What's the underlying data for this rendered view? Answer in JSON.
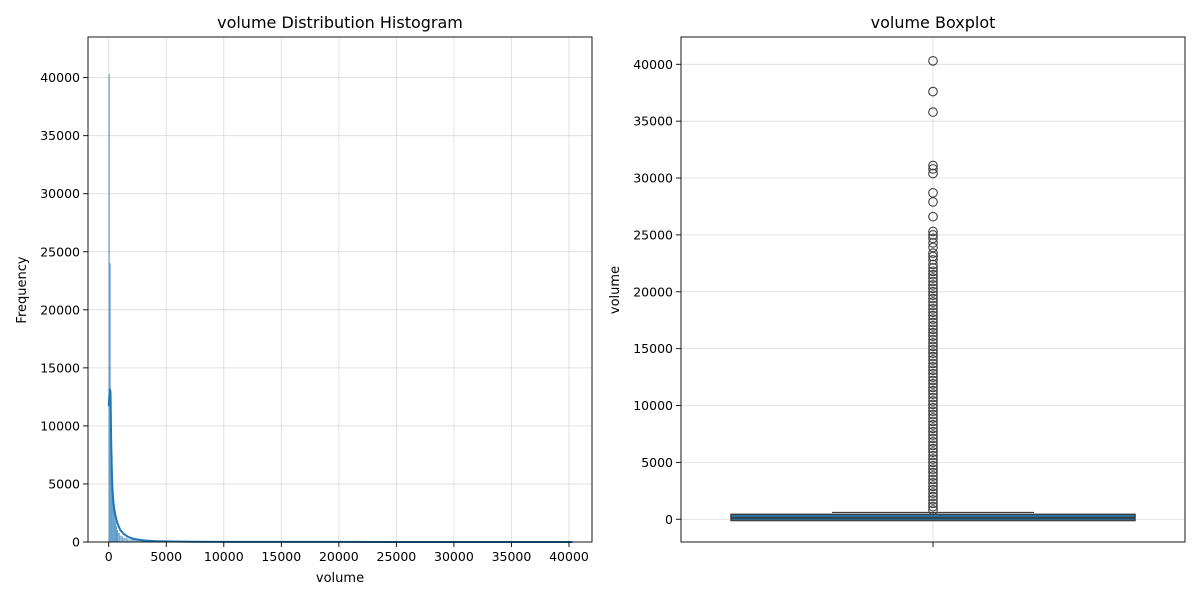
{
  "chart_data": [
    {
      "type": "histogram",
      "title": "volume Distribution Histogram",
      "xlabel": "volume",
      "ylabel": "Frequency",
      "xlim": [
        -1800,
        42000
      ],
      "ylim": [
        0,
        43500
      ],
      "xticks": [
        0,
        5000,
        10000,
        15000,
        20000,
        25000,
        30000,
        35000,
        40000
      ],
      "yticks": [
        0,
        5000,
        10000,
        15000,
        20000,
        25000,
        30000,
        35000,
        40000
      ],
      "grid": true,
      "bar_color": "#1f77b4",
      "bars": [
        {
          "x": 0,
          "width": 80,
          "count": 40300
        },
        {
          "x": 80,
          "width": 80,
          "count": 24000
        },
        {
          "x": 160,
          "width": 80,
          "count": 13000
        },
        {
          "x": 240,
          "width": 80,
          "count": 7500
        },
        {
          "x": 320,
          "width": 80,
          "count": 4800
        },
        {
          "x": 400,
          "width": 80,
          "count": 3300
        },
        {
          "x": 480,
          "width": 80,
          "count": 2400
        },
        {
          "x": 560,
          "width": 80,
          "count": 1800
        },
        {
          "x": 640,
          "width": 80,
          "count": 1350
        },
        {
          "x": 720,
          "width": 80,
          "count": 1000
        },
        {
          "x": 800,
          "width": 160,
          "count": 750
        },
        {
          "x": 960,
          "width": 240,
          "count": 520
        },
        {
          "x": 1200,
          "width": 400,
          "count": 330
        },
        {
          "x": 1600,
          "width": 600,
          "count": 190
        },
        {
          "x": 2200,
          "width": 800,
          "count": 100
        },
        {
          "x": 3000,
          "width": 1500,
          "count": 50
        },
        {
          "x": 4500,
          "width": 2500,
          "count": 20
        },
        {
          "x": 7000,
          "width": 5000,
          "count": 8
        },
        {
          "x": 12000,
          "width": 28300,
          "count": 2
        }
      ],
      "kde": {
        "x": [
          0,
          60,
          110,
          160,
          200,
          260,
          330,
          420,
          520,
          650,
          800,
          1000,
          1300,
          1700,
          2200,
          3000,
          4000,
          5500,
          7500,
          10000,
          15000,
          20000,
          25000,
          30000,
          35000,
          40300
        ],
        "y": [
          11700,
          12600,
          13200,
          12200,
          9500,
          6500,
          4400,
          3300,
          2600,
          2000,
          1500,
          1050,
          700,
          430,
          260,
          140,
          75,
          40,
          25,
          15,
          9,
          6,
          4,
          3,
          2,
          1
        ]
      }
    },
    {
      "type": "boxplot",
      "title": "volume Boxplot",
      "xlabel": "",
      "ylabel": "volume",
      "ylim": [
        -2000,
        42400
      ],
      "yticks": [
        0,
        5000,
        10000,
        15000,
        20000,
        25000,
        30000,
        35000,
        40000
      ],
      "grid": true,
      "box_color": "#1f77b4",
      "stats": {
        "whisker_low": 0,
        "q1": 20,
        "median": 120,
        "q3": 300,
        "whisker_high": 600
      },
      "outliers": [
        40300,
        37600,
        35800,
        31100,
        30800,
        30400,
        28700,
        27900,
        26600,
        25300,
        25000,
        24700,
        24300,
        23900,
        23400,
        23100,
        22800,
        22400,
        22100,
        21800,
        21500,
        21200,
        20900,
        20600,
        20300,
        20000,
        19700,
        19400,
        19100,
        18800,
        18500,
        18200,
        17900,
        17600,
        17300,
        17000,
        16700,
        16400,
        16100,
        15800,
        15500,
        15200,
        14900,
        14600,
        14300,
        14000,
        13700,
        13400,
        13100,
        12800,
        12500,
        12200,
        11900,
        11600,
        11300,
        11000,
        10700,
        10400,
        10100,
        9800,
        9500,
        9200,
        8900,
        8600,
        8300,
        8000,
        7700,
        7400,
        7100,
        6800,
        6500,
        6200,
        5900,
        5600,
        5300,
        5000,
        4700,
        4400,
        4100,
        3800,
        3500,
        3200,
        2900,
        2600,
        2300,
        2000,
        1700,
        1400,
        1100,
        800
      ]
    }
  ]
}
